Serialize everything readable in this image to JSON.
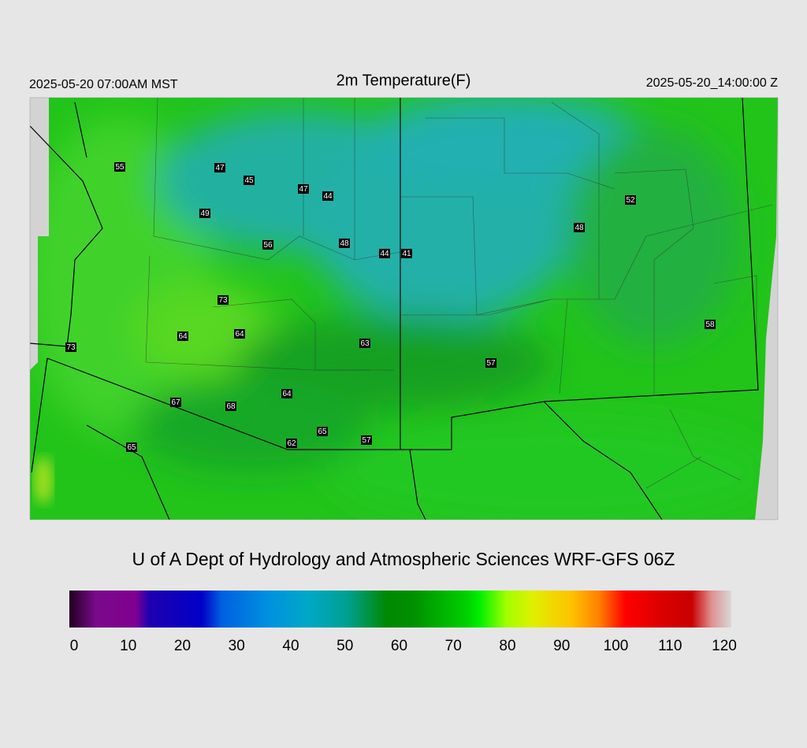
{
  "header": {
    "title": "2m Temperature(F)",
    "left_time": "2025-05-20 07:00AM MST",
    "right_time": "2025-05-20_14:00:00 Z"
  },
  "map": {
    "stations": [
      55,
      47,
      45,
      47,
      44,
      49,
      56,
      48,
      44,
      41,
      52,
      48,
      73,
      64,
      64,
      63,
      73,
      57,
      58,
      64,
      67,
      68,
      65,
      57,
      62,
      65
    ]
  },
  "caption": "U of A Dept of Hydrology and Atmospheric Sciences WRF-GFS 06Z",
  "colorbar": {
    "range": [
      0,
      120
    ],
    "ticks": [
      0,
      10,
      20,
      30,
      40,
      50,
      60,
      70,
      80,
      90,
      100,
      110,
      120
    ]
  }
}
